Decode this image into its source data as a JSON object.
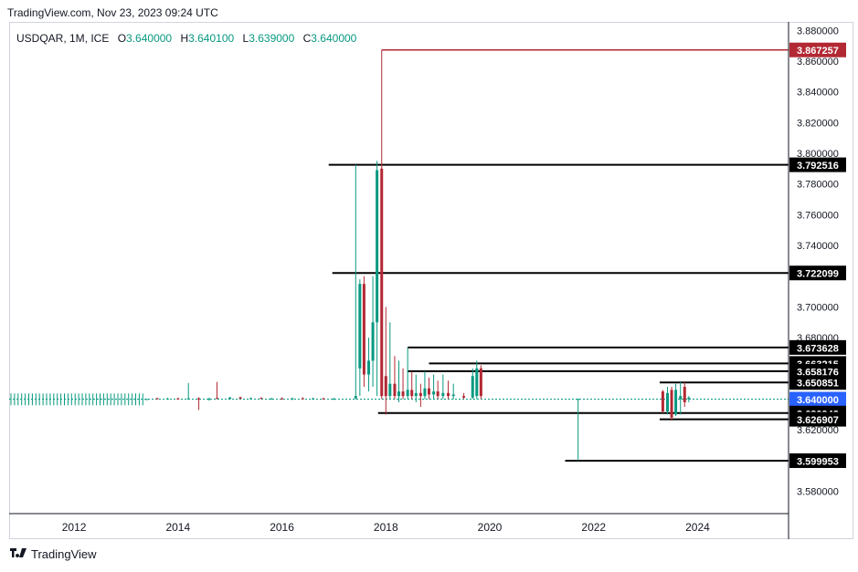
{
  "header": {
    "source": "TradingView.com, Nov 23, 2023 09:24 UTC"
  },
  "legend": {
    "symbol": "USDQAR, 1M, ICE",
    "open_label": "O",
    "open": "3.640000",
    "high_label": "H",
    "high": "3.640100",
    "low_label": "L",
    "low": "3.639000",
    "close_label": "C",
    "close": "3.640000"
  },
  "footer": {
    "brand": "TradingView"
  },
  "colors": {
    "up": "#089981",
    "down": "#b22833",
    "level_line": "#000000",
    "max_line": "#b22833",
    "current_price": "#2962ff",
    "axis_text": "#131722",
    "grid_border": "#d1d4dc"
  },
  "chart_data": {
    "type": "candlestick",
    "x_range": [
      2010.75,
      2025.75
    ],
    "ylim": [
      3.5655,
      3.8855
    ],
    "x_ticks": [
      {
        "value": 2012,
        "label": "2012"
      },
      {
        "value": 2014,
        "label": "2014"
      },
      {
        "value": 2016,
        "label": "2016"
      },
      {
        "value": 2018,
        "label": "2018"
      },
      {
        "value": 2020,
        "label": "2020"
      },
      {
        "value": 2022,
        "label": "2022"
      },
      {
        "value": 2024,
        "label": "2024"
      }
    ],
    "y_ticks": [
      "3.880000",
      "3.860000",
      "3.840000",
      "3.820000",
      "3.800000",
      "3.780000",
      "3.760000",
      "3.740000",
      "3.720000",
      "3.700000",
      "3.680000",
      "3.660000",
      "3.640000",
      "3.620000",
      "3.600000",
      "3.580000"
    ],
    "candles": [
      {
        "t": 2013.4,
        "o": 3.6397,
        "h": 3.6402,
        "l": 3.6395,
        "c": 3.64
      },
      {
        "t": 2013.6,
        "o": 3.6405,
        "h": 3.641,
        "l": 3.6398,
        "c": 3.6402
      },
      {
        "t": 2013.8,
        "o": 3.6402,
        "h": 3.6408,
        "l": 3.6396,
        "c": 3.6404
      },
      {
        "t": 2014.0,
        "o": 3.6404,
        "h": 3.641,
        "l": 3.6398,
        "c": 3.64
      },
      {
        "t": 2014.2,
        "o": 3.64,
        "h": 3.6505,
        "l": 3.6395,
        "c": 3.6405
      },
      {
        "t": 2014.4,
        "o": 3.6405,
        "h": 3.6412,
        "l": 3.633,
        "c": 3.6398
      },
      {
        "t": 2014.6,
        "o": 3.6398,
        "h": 3.641,
        "l": 3.639,
        "c": 3.6402
      },
      {
        "t": 2014.75,
        "o": 3.6408,
        "h": 3.6512,
        "l": 3.64,
        "c": 3.6402
      },
      {
        "t": 2015.0,
        "o": 3.6402,
        "h": 3.6415,
        "l": 3.6396,
        "c": 3.641
      },
      {
        "t": 2015.2,
        "o": 3.6412,
        "h": 3.6416,
        "l": 3.64,
        "c": 3.6404
      },
      {
        "t": 2015.4,
        "o": 3.6404,
        "h": 3.641,
        "l": 3.6398,
        "c": 3.6406
      },
      {
        "t": 2015.6,
        "o": 3.6408,
        "h": 3.6412,
        "l": 3.64,
        "c": 3.6402
      },
      {
        "t": 2015.8,
        "o": 3.6402,
        "h": 3.6408,
        "l": 3.6396,
        "c": 3.6404
      },
      {
        "t": 2016.0,
        "o": 3.6404,
        "h": 3.6412,
        "l": 3.6398,
        "c": 3.64
      },
      {
        "t": 2016.2,
        "o": 3.64,
        "h": 3.641,
        "l": 3.6394,
        "c": 3.6405
      },
      {
        "t": 2016.4,
        "o": 3.6405,
        "h": 3.6412,
        "l": 3.6398,
        "c": 3.6402
      },
      {
        "t": 2016.6,
        "o": 3.6402,
        "h": 3.641,
        "l": 3.6396,
        "c": 3.6404
      },
      {
        "t": 2016.8,
        "o": 3.6404,
        "h": 3.641,
        "l": 3.6398,
        "c": 3.6401
      },
      {
        "t": 2017.0,
        "o": 3.6401,
        "h": 3.6408,
        "l": 3.6395,
        "c": 3.6403
      },
      {
        "t": 2017.42,
        "o": 3.6405,
        "h": 3.7925,
        "l": 3.6398,
        "c": 3.642
      },
      {
        "t": 2017.5,
        "o": 3.66,
        "h": 3.718,
        "l": 3.642,
        "c": 3.715
      },
      {
        "t": 2017.58,
        "o": 3.715,
        "h": 3.72,
        "l": 3.648,
        "c": 3.656
      },
      {
        "t": 2017.67,
        "o": 3.656,
        "h": 3.68,
        "l": 3.645,
        "c": 3.665
      },
      {
        "t": 2017.75,
        "o": 3.665,
        "h": 3.72,
        "l": 3.648,
        "c": 3.69
      },
      {
        "t": 2017.83,
        "o": 3.69,
        "h": 3.795,
        "l": 3.642,
        "c": 3.789
      },
      {
        "t": 2017.92,
        "o": 3.79,
        "h": 3.8673,
        "l": 3.64,
        "c": 3.642
      },
      {
        "t": 2018.0,
        "o": 3.655,
        "h": 3.7,
        "l": 3.63,
        "c": 3.642
      },
      {
        "t": 2018.08,
        "o": 3.642,
        "h": 3.69,
        "l": 3.64,
        "c": 3.65
      },
      {
        "t": 2018.17,
        "o": 3.65,
        "h": 3.668,
        "l": 3.64,
        "c": 3.642
      },
      {
        "t": 2018.25,
        "o": 3.642,
        "h": 3.665,
        "l": 3.638,
        "c": 3.645
      },
      {
        "t": 2018.33,
        "o": 3.645,
        "h": 3.66,
        "l": 3.64,
        "c": 3.642
      },
      {
        "t": 2018.42,
        "o": 3.642,
        "h": 3.6736,
        "l": 3.64,
        "c": 3.646
      },
      {
        "t": 2018.5,
        "o": 3.646,
        "h": 3.658,
        "l": 3.64,
        "c": 3.642
      },
      {
        "t": 2018.58,
        "o": 3.642,
        "h": 3.656,
        "l": 3.638,
        "c": 3.644
      },
      {
        "t": 2018.67,
        "o": 3.644,
        "h": 3.65,
        "l": 3.635,
        "c": 3.642
      },
      {
        "t": 2018.75,
        "o": 3.642,
        "h": 3.658,
        "l": 3.64,
        "c": 3.647
      },
      {
        "t": 2018.83,
        "o": 3.647,
        "h": 3.654,
        "l": 3.64,
        "c": 3.643
      },
      {
        "t": 2018.92,
        "o": 3.643,
        "h": 3.656,
        "l": 3.64,
        "c": 3.645
      },
      {
        "t": 2019.0,
        "o": 3.645,
        "h": 3.652,
        "l": 3.64,
        "c": 3.642
      },
      {
        "t": 2019.1,
        "o": 3.642,
        "h": 3.656,
        "l": 3.64,
        "c": 3.644
      },
      {
        "t": 2019.2,
        "o": 3.644,
        "h": 3.652,
        "l": 3.64,
        "c": 3.642
      },
      {
        "t": 2019.3,
        "o": 3.642,
        "h": 3.65,
        "l": 3.64,
        "c": 3.643
      },
      {
        "t": 2019.5,
        "o": 3.642,
        "h": 3.644,
        "l": 3.64,
        "c": 3.641
      },
      {
        "t": 2019.67,
        "o": 3.641,
        "h": 3.66,
        "l": 3.64,
        "c": 3.655
      },
      {
        "t": 2019.75,
        "o": 3.642,
        "h": 3.665,
        "l": 3.64,
        "c": 3.66
      },
      {
        "t": 2019.83,
        "o": 3.66,
        "h": 3.662,
        "l": 3.64,
        "c": 3.642
      },
      {
        "t": 2021.7,
        "o": 3.64,
        "h": 3.6402,
        "l": 3.6,
        "c": 3.6401
      },
      {
        "t": 2023.33,
        "o": 3.645,
        "h": 3.646,
        "l": 3.631,
        "c": 3.632
      },
      {
        "t": 2023.42,
        "o": 3.632,
        "h": 3.648,
        "l": 3.63,
        "c": 3.644
      },
      {
        "t": 2023.5,
        "o": 3.646,
        "h": 3.648,
        "l": 3.626,
        "c": 3.628
      },
      {
        "t": 2023.58,
        "o": 3.63,
        "h": 3.65,
        "l": 3.629,
        "c": 3.646
      },
      {
        "t": 2023.67,
        "o": 3.64,
        "h": 3.651,
        "l": 3.63,
        "c": 3.642
      },
      {
        "t": 2023.75,
        "o": 3.648,
        "h": 3.6509,
        "l": 3.635,
        "c": 3.638
      },
      {
        "t": 2023.83,
        "o": 3.64,
        "h": 3.642,
        "l": 3.638,
        "c": 3.641
      }
    ],
    "level_lines": [
      {
        "value": 3.867257,
        "label": "3.867257",
        "x_start": 2017.92,
        "style": "max"
      },
      {
        "value": 3.792516,
        "label": "3.792516",
        "x_start": 2016.9,
        "style": "level"
      },
      {
        "value": 3.722099,
        "label": "3.722099",
        "x_start": 2016.97,
        "style": "level"
      },
      {
        "value": 3.673628,
        "label": "3.673628",
        "x_start": 2018.42,
        "style": "level"
      },
      {
        "value": 3.663215,
        "label": "3.663215",
        "x_start": 2018.83,
        "style": "level"
      },
      {
        "value": 3.658176,
        "label": "3.658176",
        "x_start": 2018.42,
        "style": "level"
      },
      {
        "value": 3.650851,
        "label": "3.650851",
        "x_start": 2023.27,
        "style": "level"
      },
      {
        "value": 3.64,
        "label": "3.640000",
        "x_start": 2010.75,
        "style": "current"
      },
      {
        "value": 3.630942,
        "label": "3.630942",
        "x_start": 2017.85,
        "style": "level"
      },
      {
        "value": 3.626907,
        "label": "3.626907",
        "x_start": 2023.27,
        "style": "level"
      },
      {
        "value": 3.599953,
        "label": "3.599953",
        "x_start": 2021.45,
        "style": "level"
      }
    ],
    "grid": false,
    "legend_position": "top-left"
  }
}
